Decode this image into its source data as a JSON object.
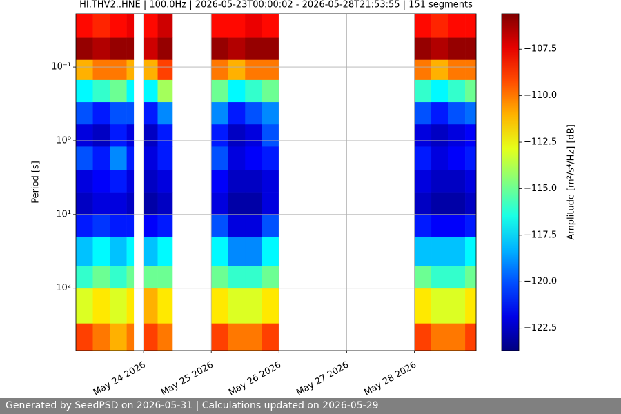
{
  "chart_data": {
    "type": "spectrogram",
    "title": "HI.THV2..HNE | 100.0Hz | 2026-05-23T00:00:02 - 2026-05-28T21:53:55 | 151 segments",
    "ylabel": "Period [s]",
    "colorbar_label": "Amplitude [m²/s⁴/Hz] [dB]",
    "xlim": [
      "2026-05-23T00:00:02",
      "2026-05-28T21:53:55"
    ],
    "xticks": [
      {
        "value": "2026-05-24",
        "label": "May 24 2026"
      },
      {
        "value": "2026-05-25",
        "label": "May 25 2026"
      },
      {
        "value": "2026-05-26",
        "label": "May 26 2026"
      },
      {
        "value": "2026-05-27",
        "label": "May 27 2026"
      },
      {
        "value": "2026-05-28",
        "label": "May 28 2026"
      }
    ],
    "ylim": [
      0.019,
      700
    ],
    "log_y": true,
    "y_inverted": true,
    "yticks": [
      {
        "value": 0.1,
        "label": "10⁻¹"
      },
      {
        "value": 1,
        "label": "10⁰"
      },
      {
        "value": 10,
        "label": "10¹"
      },
      {
        "value": 100,
        "label": "10²"
      }
    ],
    "grid": true,
    "colormap": "jet",
    "clim": [
      -123.7,
      -105.6
    ],
    "cticks": [
      -107.5,
      -110.0,
      -112.5,
      -115.0,
      -117.5,
      -120.0,
      -122.5
    ],
    "period_bins": [
      0.019,
      0.04,
      0.08,
      0.15,
      0.3,
      0.6,
      1.2,
      2.5,
      5,
      10,
      20,
      50,
      100,
      300,
      700
    ],
    "columns": [
      {
        "start": "2026-05-23T00:00:02",
        "end": "2026-05-23T06:00",
        "z": [
          -108,
          -106,
          -111,
          -117,
          -120,
          -122,
          -120,
          -122,
          -122.5,
          -121,
          -118,
          -116,
          -113,
          -109
        ]
      },
      {
        "start": "2026-05-23T06:00",
        "end": "2026-05-23T12:00",
        "z": [
          -108.5,
          -106.5,
          -110,
          -116,
          -121,
          -122.5,
          -121,
          -121.5,
          -122,
          -120.5,
          -117,
          -115,
          -112,
          -110
        ]
      },
      {
        "start": "2026-05-23T12:00",
        "end": "2026-05-23T18:00",
        "z": [
          -108,
          -106,
          -110,
          -115,
          -120,
          -121,
          -119,
          -121,
          -122,
          -121,
          -118,
          -116,
          -113,
          -111
        ]
      },
      {
        "start": "2026-05-23T18:00",
        "end": "2026-05-23T20:30",
        "z": [
          -107.5,
          -106,
          -111,
          -117,
          -120,
          -122,
          -121,
          -122,
          -122.5,
          -121,
          -117,
          -115,
          -112,
          -110
        ]
      },
      {
        "start": "2026-05-24T00:00",
        "end": "2026-05-24T05:00",
        "z": [
          -108,
          -107,
          -111,
          -117,
          -121,
          -122.5,
          -122,
          -122.5,
          -123,
          -121.5,
          -118,
          -115,
          -111,
          -109
        ]
      },
      {
        "start": "2026-05-24T05:00",
        "end": "2026-05-24T10:15",
        "z": [
          -107,
          -106,
          -109,
          -114,
          -119,
          -121,
          -121,
          -122,
          -122.5,
          -121,
          -117,
          -115,
          -112,
          -110
        ]
      },
      {
        "start": "2026-05-25T00:00",
        "end": "2026-05-25T06:00",
        "z": [
          -108,
          -106,
          -110,
          -115,
          -119,
          -121,
          -120,
          -121.5,
          -122,
          -120,
          -117,
          -115,
          -112,
          -109
        ]
      },
      {
        "start": "2026-05-25T06:00",
        "end": "2026-05-25T12:00",
        "z": [
          -108,
          -106.5,
          -111,
          -117,
          -121,
          -122.5,
          -122,
          -122.5,
          -123,
          -122,
          -119,
          -116,
          -113,
          -110
        ]
      },
      {
        "start": "2026-05-25T12:00",
        "end": "2026-05-25T18:00",
        "z": [
          -107.5,
          -106,
          -110,
          -116,
          -120,
          -122,
          -121.5,
          -122.5,
          -123,
          -122,
          -119,
          -116,
          -113,
          -110
        ]
      },
      {
        "start": "2026-05-25T18:00",
        "end": "2026-05-26T00:00",
        "z": [
          -108,
          -106,
          -110,
          -115,
          -119,
          -120,
          -121,
          -122,
          -122,
          -120,
          -117,
          -115,
          -112,
          -109
        ]
      },
      {
        "start": "2026-05-28T00:00",
        "end": "2026-05-28T06:00",
        "z": [
          -108,
          -106,
          -110,
          -116,
          -120,
          -122,
          -121,
          -122,
          -122.5,
          -121,
          -118,
          -115,
          -112,
          -109
        ]
      },
      {
        "start": "2026-05-28T06:00",
        "end": "2026-05-28T12:00",
        "z": [
          -108.5,
          -106.5,
          -111,
          -117,
          -121,
          -122.5,
          -122,
          -122.5,
          -123,
          -121.5,
          -118,
          -116,
          -113,
          -110
        ]
      },
      {
        "start": "2026-05-28T12:00",
        "end": "2026-05-28T18:00",
        "z": [
          -108,
          -106,
          -110,
          -116,
          -120,
          -122,
          -121.5,
          -122.5,
          -123,
          -121.5,
          -118,
          -116,
          -113,
          -110
        ]
      },
      {
        "start": "2026-05-28T18:00",
        "end": "2026-05-28T21:53:55",
        "z": [
          -108,
          -106,
          -110,
          -115,
          -119.5,
          -121.5,
          -121,
          -122,
          -122.5,
          -121,
          -117,
          -115,
          -112,
          -109
        ]
      }
    ]
  },
  "footer": "Generated by SeedPSD on 2026-05-31 | Calculations updated on 2026-05-29"
}
